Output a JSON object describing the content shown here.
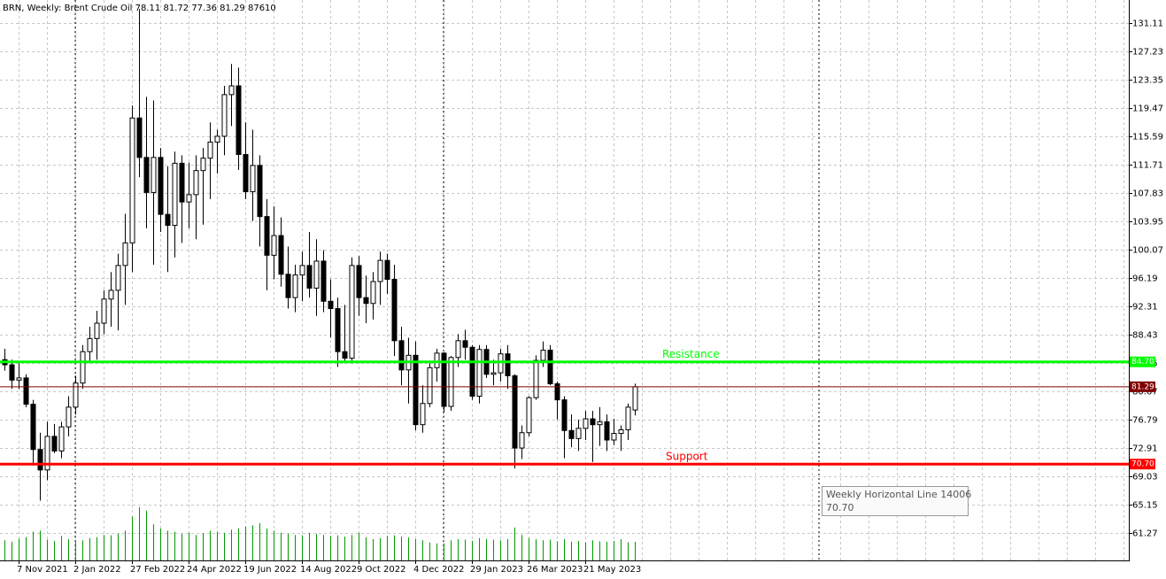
{
  "chart_data": {
    "type": "candlestick",
    "title_symbol": "BRN, Weekly:",
    "title_name": "Brent Crude Oil",
    "categories": [
      null,
      null,
      "7 Nov 2021",
      null,
      null,
      null,
      null,
      null,
      null,
      null,
      "2 Jan 2022",
      null,
      null,
      null,
      null,
      null,
      null,
      null,
      "27 Feb 2022",
      null,
      null,
      null,
      null,
      null,
      null,
      null,
      "24 Apr 2022",
      null,
      null,
      null,
      null,
      null,
      null,
      null,
      "19 Jun 2022",
      null,
      null,
      null,
      null,
      null,
      null,
      null,
      "14 Aug 2022",
      null,
      null,
      null,
      null,
      null,
      null,
      null,
      "9 Oct 2022",
      null,
      null,
      null,
      null,
      null,
      null,
      null,
      "4 Dec 2022",
      null,
      null,
      null,
      null,
      null,
      null,
      null,
      "29 Jan 2023",
      null,
      null,
      null,
      null,
      null,
      null,
      null,
      "26 Mar 2023",
      null,
      null,
      null,
      null,
      null,
      null,
      null,
      "21 May 2023",
      null,
      null,
      null,
      null,
      null,
      null,
      null
    ],
    "open": [
      85.0,
      84.3,
      82.2,
      82.5,
      78.9,
      72.7,
      69.9,
      74.5,
      72.5,
      75.8,
      78.5,
      81.8,
      86.1,
      87.9,
      90.0,
      93.3,
      94.5,
      97.9,
      101.0,
      118.1,
      112.7,
      107.9,
      112.7,
      104.9,
      103.4,
      111.9,
      106.6,
      107.6,
      110.9,
      112.6,
      114.8,
      115.6,
      121.3,
      122.5,
      113.1,
      108.0,
      111.6,
      104.6,
      99.3,
      102.0,
      96.7,
      93.5,
      96.6,
      97.9,
      94.8,
      98.5,
      93.0,
      92.0,
      86.1,
      85.2,
      97.9,
      93.5,
      92.7,
      95.7,
      98.6,
      96.0,
      87.6,
      83.6,
      85.6,
      76.1,
      79.0,
      83.9,
      85.9,
      78.6,
      85.3,
      87.6,
      86.7,
      80.0,
      86.4,
      83.0,
      83.2,
      85.8,
      82.8,
      72.9,
      75.0,
      79.8,
      84.9,
      86.3,
      81.7,
      79.5,
      75.3,
      74.2,
      75.6,
      76.9,
      76.1,
      76.5,
      74.0,
      74.9,
      75.4,
      78.11
    ],
    "high": [
      86.5,
      85.0,
      84.5,
      83.0,
      79.5,
      75.0,
      76.5,
      76.2,
      76.5,
      80.0,
      82.8,
      87.0,
      89.5,
      91.7,
      94.5,
      97.0,
      99.5,
      105.0,
      119.8,
      133.0,
      121.0,
      120.5,
      114.0,
      111.5,
      113.5,
      113.0,
      112.0,
      113.0,
      114.0,
      117.5,
      116.5,
      122.5,
      125.5,
      125.0,
      117.5,
      116.5,
      113.0,
      107.0,
      106.0,
      104.5,
      100.5,
      98.0,
      99.8,
      102.5,
      101.5,
      100.0,
      96.0,
      93.5,
      92.5,
      99.0,
      99.2,
      96.5,
      97.0,
      99.8,
      99.5,
      98.0,
      89.5,
      88.0,
      87.5,
      81.5,
      84.5,
      86.5,
      86.0,
      85.5,
      88.5,
      89.1,
      87.0,
      87.0,
      87.0,
      85.0,
      86.5,
      87.0,
      83.0,
      76.0,
      80.0,
      85.6,
      87.5,
      87.0,
      82.0,
      80.0,
      77.5,
      76.8,
      78.0,
      78.0,
      78.5,
      77.5,
      76.9,
      76.0,
      79.0,
      81.72
    ],
    "low": [
      83.5,
      81.0,
      81.0,
      78.5,
      70.5,
      65.7,
      68.5,
      72.2,
      71.5,
      74.5,
      77.5,
      81.0,
      84.5,
      85.0,
      88.5,
      89.5,
      89.0,
      92.5,
      97.0,
      110.0,
      103.0,
      98.0,
      102.5,
      97.0,
      99.0,
      101.0,
      103.0,
      101.5,
      103.5,
      107.0,
      110.5,
      113.0,
      117.0,
      111.0,
      107.0,
      104.0,
      100.5,
      94.5,
      96.0,
      95.0,
      92.0,
      91.5,
      93.0,
      93.5,
      91.0,
      91.5,
      88.0,
      84.0,
      84.5,
      84.5,
      91.0,
      90.0,
      90.5,
      92.5,
      94.0,
      85.5,
      81.5,
      79.0,
      75.3,
      75.0,
      78.5,
      82.0,
      77.8,
      78.0,
      84.0,
      85.0,
      79.5,
      79.0,
      82.5,
      81.5,
      82.0,
      81.0,
      70.1,
      71.4,
      74.5,
      79.5,
      84.0,
      81.5,
      76.8,
      71.5,
      73.0,
      72.5,
      74.0,
      71.0,
      73.2,
      72.5,
      73.3,
      72.5,
      74.0,
      77.36
    ],
    "close": [
      84.3,
      82.2,
      82.5,
      78.9,
      72.7,
      69.9,
      74.5,
      72.5,
      75.8,
      78.5,
      81.8,
      86.1,
      87.9,
      90.0,
      93.3,
      94.5,
      97.9,
      101.0,
      118.1,
      112.7,
      107.9,
      112.7,
      104.9,
      103.4,
      111.9,
      106.6,
      107.6,
      110.9,
      112.6,
      114.8,
      115.6,
      121.3,
      122.5,
      113.1,
      108.0,
      111.6,
      104.6,
      99.3,
      102.0,
      96.7,
      93.5,
      96.6,
      97.9,
      94.8,
      98.5,
      93.0,
      92.0,
      86.1,
      85.2,
      97.9,
      93.5,
      92.7,
      95.7,
      98.6,
      96.0,
      87.6,
      83.6,
      85.6,
      76.1,
      79.0,
      83.9,
      85.9,
      78.6,
      85.3,
      87.6,
      86.7,
      80.0,
      86.4,
      83.0,
      83.2,
      85.8,
      82.8,
      72.9,
      75.0,
      79.8,
      84.9,
      86.3,
      81.7,
      79.5,
      75.3,
      74.2,
      75.6,
      76.9,
      76.1,
      76.5,
      74.0,
      74.9,
      75.4,
      78.5,
      81.29
    ],
    "volume": [
      95000,
      88000,
      102000,
      110000,
      135000,
      140000,
      98000,
      92000,
      115000,
      100000,
      90000,
      95000,
      105000,
      110000,
      120000,
      118000,
      125000,
      140000,
      205000,
      250000,
      235000,
      170000,
      150000,
      140000,
      135000,
      125000,
      130000,
      120000,
      128000,
      140000,
      135000,
      130000,
      145000,
      150000,
      160000,
      165000,
      175000,
      150000,
      140000,
      130000,
      125000,
      120000,
      118000,
      130000,
      125000,
      120000,
      115000,
      118000,
      112000,
      120000,
      130000,
      110000,
      100000,
      105000,
      115000,
      118000,
      112000,
      108000,
      100000,
      95000,
      85000,
      80000,
      78000,
      95000,
      100000,
      98000,
      92000,
      105000,
      100000,
      98000,
      95000,
      100000,
      155000,
      120000,
      105000,
      100000,
      95000,
      98000,
      90000,
      100000,
      88000,
      92000,
      85000,
      95000,
      90000,
      88000,
      92000,
      100000,
      86000,
      87610
    ],
    "volume_color": "#009900",
    "last_price_color": "#800000",
    "ylim": [
      57.51,
      134.26
    ],
    "yticks": [
      131.11,
      127.23,
      123.35,
      119.47,
      115.59,
      111.71,
      107.83,
      103.95,
      100.07,
      96.19,
      92.31,
      88.43,
      84.55,
      80.67,
      76.79,
      72.91,
      69.03,
      65.15,
      61.27
    ],
    "grid": true,
    "hlines": [
      {
        "name": "Resistance",
        "value": 84.7,
        "value_label": "84.70",
        "color": "#00ff00"
      },
      {
        "name": "Support",
        "value": 70.7,
        "value_label": "70.70",
        "color": "#ff0000"
      }
    ],
    "tooltip": "Weekly Horizontal Line 14006"
  }
}
